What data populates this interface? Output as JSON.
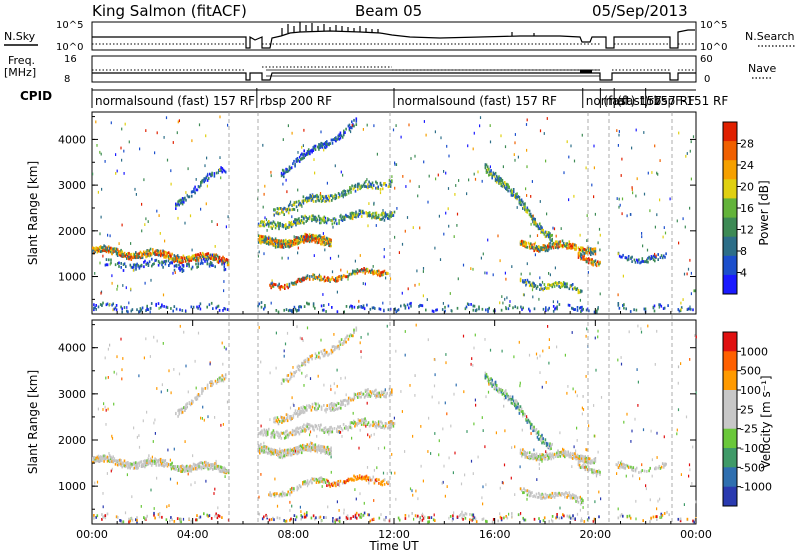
{
  "header": {
    "station": "King Salmon (fitACF)",
    "beam": "Beam 05",
    "date": "05/Sep/2013"
  },
  "top_panels": {
    "nsky_label": "N.Sky",
    "nsky_ticks": [
      "10^5",
      "10^0"
    ],
    "nsearch_label": "N.Search",
    "nsearch_ticks": [
      "10^5",
      "10^0"
    ],
    "freq_label": "Freq.",
    "freq_unit": "[MHz]",
    "freq_ticks": [
      "16",
      "8"
    ],
    "nave_label": "Nave",
    "nave_ticks": [
      "60",
      "0"
    ],
    "cpid_label": "CPID"
  },
  "cpid_segments": [
    {
      "start_h": 0.0,
      "end_h": 5.45,
      "label": "normalsound (fast) 157 RF"
    },
    {
      "start_h": 6.55,
      "end_h": 12.0,
      "label": "rbsp 200 RF"
    },
    {
      "start_h": 12.0,
      "end_h": 19.5,
      "label": "normalsound (fast) 157 RF"
    },
    {
      "start_h": 19.5,
      "end_h": 20.2,
      "label": "normal"
    },
    {
      "start_h": 20.2,
      "end_h": 20.75,
      "label": "(fast) 157"
    },
    {
      "start_h": 20.75,
      "end_h": 22.0,
      "label": "(fast) 157 RF"
    },
    {
      "start_h": 22.0,
      "end_h": 23.9,
      "label": "rbspF-151 RF"
    }
  ],
  "xaxis": {
    "label": "Time UT",
    "ticks": [
      "00:00",
      "04:00",
      "08:00",
      "12:00",
      "16:00",
      "20:00",
      "00:00"
    ]
  },
  "colorbars": {
    "power": {
      "label": "Power [dB]",
      "ticks": [
        "28",
        "24",
        "20",
        "16",
        "12",
        "8",
        "4"
      ],
      "colors": [
        "#1a1aff",
        "#1c4fcc",
        "#2d6e88",
        "#3d8a55",
        "#63b33a",
        "#e0d010",
        "#f5a000",
        "#f06000",
        "#e02000"
      ]
    },
    "velocity": {
      "label": "Velocity [m s⁻¹]",
      "ticks": [
        "1000",
        "500",
        "100",
        "25",
        "-25",
        "-100",
        "-500",
        "-1000"
      ],
      "colors": [
        "#2a3ab0",
        "#2f6fb0",
        "#3f9a68",
        "#6ac83a",
        "#c8c8c8",
        "#c8c8c8",
        "#ff9a00",
        "#ff6000",
        "#e01010"
      ]
    }
  },
  "chart_data": [
    {
      "type": "heatmap",
      "title": "Power",
      "ylabel": "Slant Range [km]",
      "yticks": [
        "1000",
        "2000",
        "3000",
        "4000"
      ],
      "ylim": [
        180,
        4600
      ],
      "xlim_hours": [
        0,
        24
      ],
      "bands": [
        {
          "t0": 0.0,
          "t1": 5.4,
          "r0": 1560,
          "r1": 1360,
          "w": 130,
          "p": 0.75,
          "cls": "high"
        },
        {
          "t0": 0.5,
          "t1": 5.3,
          "r0": 1250,
          "r1": 1250,
          "w": 150,
          "p": 0.2,
          "cls": "low"
        },
        {
          "t0": 3.3,
          "t1": 5.3,
          "r0": 2600,
          "r1": 3400,
          "w": 120,
          "p": 0.45,
          "cls": "low"
        },
        {
          "t0": 6.5,
          "t1": 9.5,
          "r0": 1750,
          "r1": 1800,
          "w": 160,
          "p": 0.85,
          "cls": "high"
        },
        {
          "t0": 6.5,
          "t1": 12.0,
          "r0": 2100,
          "r1": 2400,
          "w": 140,
          "p": 0.5,
          "cls": "mid"
        },
        {
          "t0": 7.2,
          "t1": 11.9,
          "r0": 2450,
          "r1": 3100,
          "w": 150,
          "p": 0.45,
          "cls": "mid"
        },
        {
          "t0": 7.5,
          "t1": 10.5,
          "r0": 3300,
          "r1": 4350,
          "w": 140,
          "p": 0.45,
          "cls": "low"
        },
        {
          "t0": 7.0,
          "t1": 11.8,
          "r0": 800,
          "r1": 1150,
          "w": 90,
          "p": 0.6,
          "cls": "high"
        },
        {
          "t0": 15.6,
          "t1": 18.3,
          "r0": 3450,
          "r1": 1800,
          "w": 160,
          "p": 0.55,
          "cls": "mid"
        },
        {
          "t0": 17.0,
          "t1": 20.0,
          "r0": 1700,
          "r1": 1600,
          "w": 130,
          "p": 0.7,
          "cls": "high"
        },
        {
          "t0": 17.0,
          "t1": 19.5,
          "r0": 900,
          "r1": 700,
          "w": 110,
          "p": 0.6,
          "cls": "mid"
        },
        {
          "t0": 19.3,
          "t1": 20.2,
          "r0": 1500,
          "r1": 1300,
          "w": 120,
          "p": 0.6,
          "cls": "high"
        },
        {
          "t0": 20.8,
          "t1": 22.8,
          "r0": 1400,
          "r1": 1400,
          "w": 100,
          "p": 0.4,
          "cls": "low"
        },
        {
          "t0": 0.0,
          "t1": 24.0,
          "r0": 300,
          "r1": 300,
          "w": 130,
          "p": 0.05,
          "cls": "low"
        }
      ]
    },
    {
      "type": "heatmap",
      "title": "Velocity",
      "ylabel": "Slant Range [km]",
      "yticks": [
        "1000",
        "2000",
        "3000",
        "4000"
      ],
      "ylim": [
        180,
        4600
      ],
      "xlim_hours": [
        0,
        24
      ],
      "bands": [
        {
          "t0": 0.0,
          "t1": 5.4,
          "r0": 1560,
          "r1": 1360,
          "w": 130,
          "p": 0.75,
          "cls": "grey"
        },
        {
          "t0": 3.3,
          "t1": 5.3,
          "r0": 2600,
          "r1": 3400,
          "w": 120,
          "p": 0.35,
          "cls": "grey"
        },
        {
          "t0": 6.5,
          "t1": 9.5,
          "r0": 1750,
          "r1": 1800,
          "w": 160,
          "p": 0.7,
          "cls": "grey"
        },
        {
          "t0": 6.5,
          "t1": 12.0,
          "r0": 2100,
          "r1": 2400,
          "w": 140,
          "p": 0.45,
          "cls": "grey"
        },
        {
          "t0": 7.2,
          "t1": 11.9,
          "r0": 2450,
          "r1": 3100,
          "w": 150,
          "p": 0.45,
          "cls": "grey"
        },
        {
          "t0": 7.5,
          "t1": 10.5,
          "r0": 3300,
          "r1": 4350,
          "w": 140,
          "p": 0.4,
          "cls": "grey"
        },
        {
          "t0": 7.0,
          "t1": 9.3,
          "r0": 800,
          "r1": 1150,
          "w": 90,
          "p": 0.55,
          "cls": "grey"
        },
        {
          "t0": 9.3,
          "t1": 11.8,
          "r0": 1100,
          "r1": 1150,
          "w": 100,
          "p": 0.6,
          "cls": "orange"
        },
        {
          "t0": 15.6,
          "t1": 18.3,
          "r0": 3450,
          "r1": 1800,
          "w": 160,
          "p": 0.5,
          "cls": "greygreen"
        },
        {
          "t0": 17.0,
          "t1": 20.0,
          "r0": 1700,
          "r1": 1600,
          "w": 130,
          "p": 0.65,
          "cls": "grey"
        },
        {
          "t0": 17.0,
          "t1": 19.5,
          "r0": 900,
          "r1": 700,
          "w": 110,
          "p": 0.55,
          "cls": "grey"
        },
        {
          "t0": 19.3,
          "t1": 20.2,
          "r0": 1500,
          "r1": 1300,
          "w": 120,
          "p": 0.55,
          "cls": "grey"
        },
        {
          "t0": 20.8,
          "t1": 22.8,
          "r0": 1400,
          "r1": 1400,
          "w": 100,
          "p": 0.4,
          "cls": "grey"
        },
        {
          "t0": 0.0,
          "t1": 24.0,
          "r0": 300,
          "r1": 300,
          "w": 130,
          "p": 0.05,
          "cls": "mixed"
        }
      ]
    }
  ]
}
